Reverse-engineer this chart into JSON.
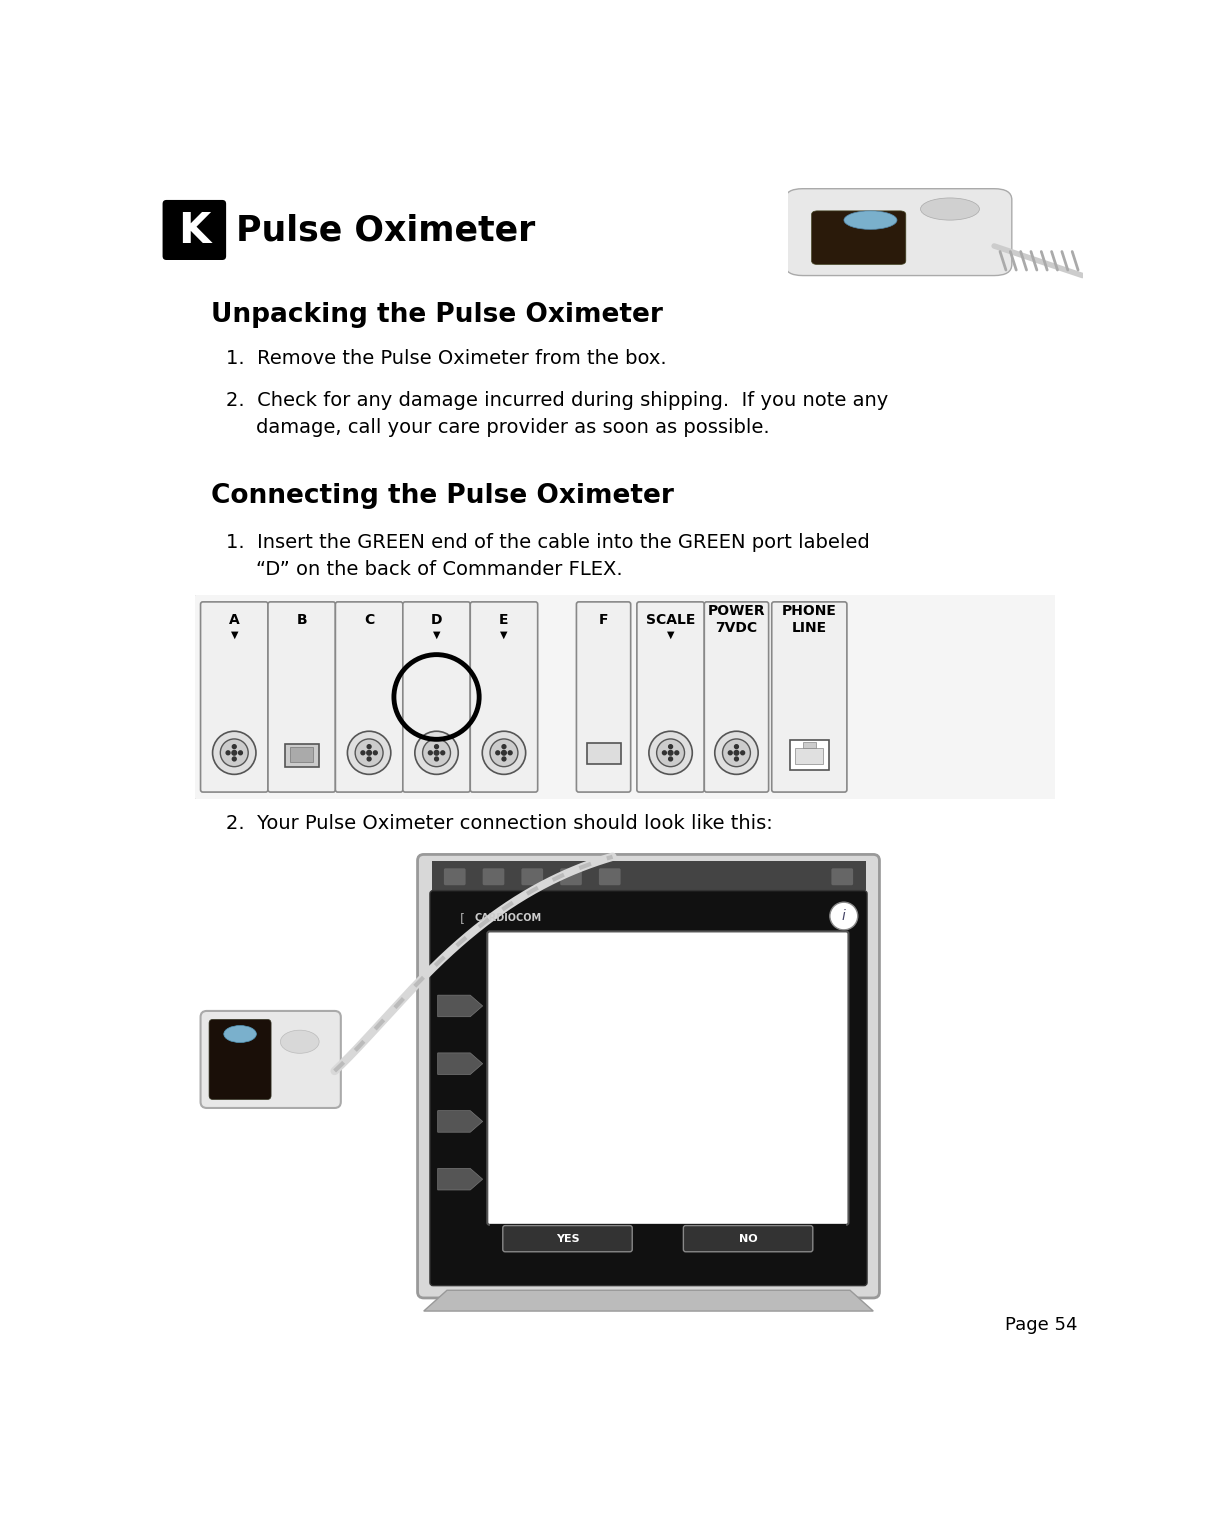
{
  "page_bg": "#ffffff",
  "page_number": "Page 54",
  "header_title": "Pulse Oximeter",
  "header_k_bg": "#000000",
  "header_k_text": "K",
  "section1_title": "Unpacking the Pulse Oximeter",
  "item1_1": "1.  Remove the Pulse Oximeter from the box.",
  "item1_2a": "2.  Check for any damage incurred during shipping.  If you note any",
  "item1_2b": "damage, call your care provider as soon as possible.",
  "section2_title": "Connecting the Pulse Oximeter",
  "item2_1a": "1.  Insert the GREEN end of the cable into the GREEN port labeled",
  "item2_1b": "“D” on the back of Commander FLEX.",
  "item2_2": "2.  Your Pulse Oximeter connection should look like this:",
  "text_fontsize": 14,
  "section_title_fontsize": 19,
  "header_title_fontsize": 25,
  "body_text_color": "#000000",
  "ml": 0.06
}
